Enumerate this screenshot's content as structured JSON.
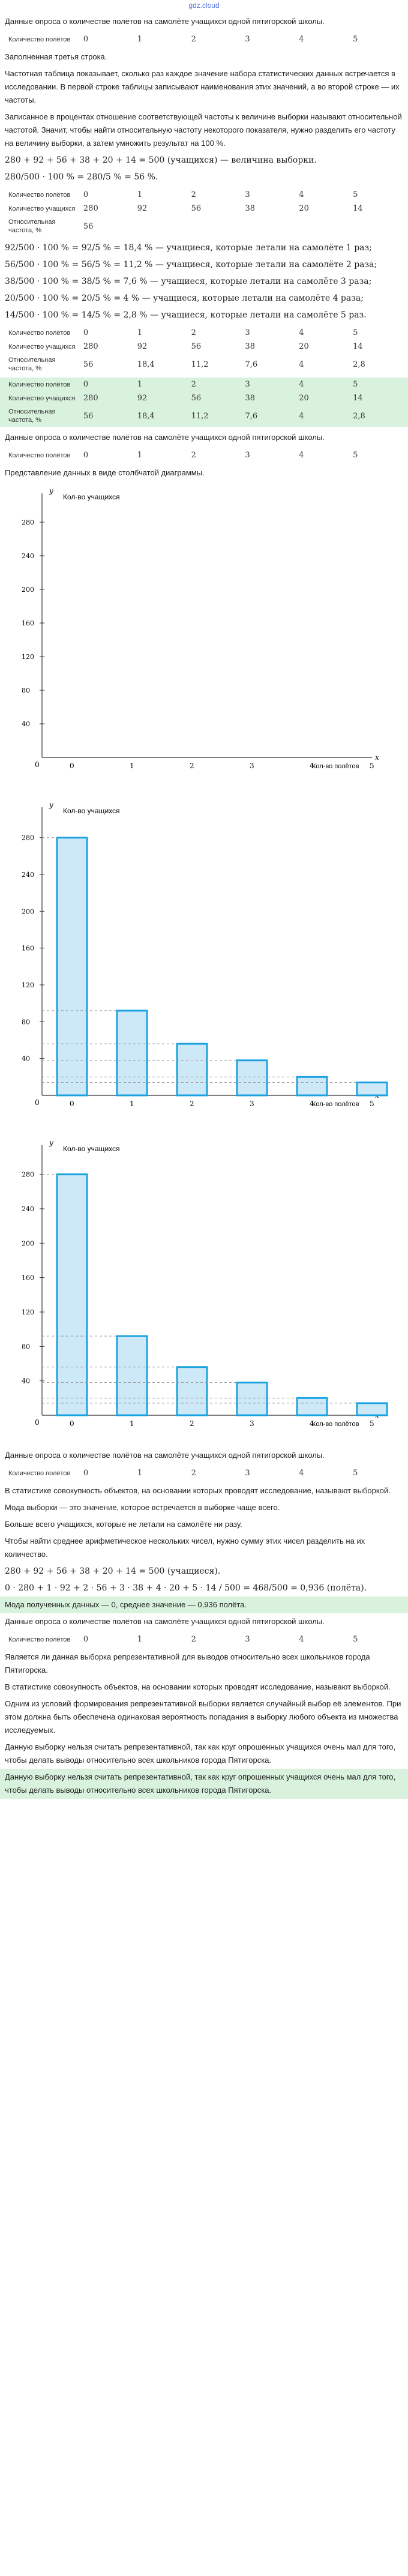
{
  "site": "gdz.cloud",
  "wm": "gdz.cloud",
  "s1": {
    "intro": "Данные опроса о количестве полётов на самолёте учащихся одной пятигорской школы.",
    "row_labels": [
      "Количество полётов"
    ],
    "cols": [
      "0",
      "1",
      "2",
      "3",
      "4",
      "5"
    ]
  },
  "p": [
    "Заполненная третья строка.",
    "Частотная таблица показывает, сколько раз каждое значение набора статистических данных встречается в исследовании. В первой строке таблицы записывают наименования этих значений, а во второй строке — их частоты.",
    "Записанное в процентах отношение соответствующей частоты к величине выборки называют относительной частотой. Значит, чтобы найти относительную частоту некоторого показателя, нужно разделить его частоту на величину выборки, а затем умножить результат на 100 %."
  ],
  "f1": "280 + 92 + 56 + 38 + 20 + 14 = 500 (учащихся) — величина выборки.",
  "f2": "280/500 · 100 % = 280/5 % = 56 %.",
  "t2": {
    "labels": [
      "Количество полётов",
      "Количество учащихся",
      "Относительная частота, %"
    ],
    "r1": [
      "0",
      "1",
      "2",
      "3",
      "4",
      "5"
    ],
    "r2": [
      "280",
      "92",
      "56",
      "38",
      "20",
      "14"
    ],
    "r3": [
      "56",
      "",
      "",
      "",
      "",
      ""
    ]
  },
  "calc": [
    "92/500 · 100 % = 92/5 % = 18,4 % — учащиеся, которые летали на самолёте 1 раз;",
    "56/500 · 100 % = 56/5 % = 11,2 % — учащиеся, которые летали на самолёте 2 раза;",
    "38/500 · 100 % = 38/5 % = 7,6 % — учащиеся, которые летали на самолёте 3 раза;",
    "20/500 · 100 % = 20/5 % = 4 % — учащиеся, которые летали на самолёте 4 раза;",
    "14/500 · 100 % = 14/5 % = 2,8 % — учащиеся, которые летали на самолёте 5 раз."
  ],
  "t3": {
    "labels": [
      "Количество полётов",
      "Количество учащихся",
      "Относительная частота, %"
    ],
    "r1": [
      "0",
      "1",
      "2",
      "3",
      "4",
      "5"
    ],
    "r2": [
      "280",
      "92",
      "56",
      "38",
      "20",
      "14"
    ],
    "r3": [
      "56",
      "18,4",
      "11,2",
      "7,6",
      "4",
      "2,8"
    ]
  },
  "s2intro": "Данные опроса о количестве полётов на самолёте учащихся одной пятигорской школы.",
  "s2cols": [
    "0",
    "1",
    "2",
    "3",
    "4",
    "5"
  ],
  "diag_text": "Представление данных в виде столбчатой диаграммы.",
  "chart_data": {
    "type": "bar",
    "categories": [
      "0",
      "1",
      "2",
      "3",
      "4",
      "5"
    ],
    "values": [
      280,
      92,
      56,
      38,
      20,
      14
    ],
    "ylabel": "Кол-во учащихся",
    "xlabel": "Кол-во полётов",
    "yticks": [
      "40",
      "80",
      "120",
      "160",
      "200",
      "240",
      "280"
    ],
    "xaxis": "x",
    "yaxis": "y",
    "origin": "0"
  },
  "s3intro": "Данные опроса о количестве полётов на самолёте учащихся одной пятигорской школы.",
  "s3cols": [
    "0",
    "1",
    "2",
    "3",
    "4",
    "5"
  ],
  "p2": [
    "В статистике совокупность объектов, на основании которых проводят исследование, называют выборкой.",
    "Мода выборки — это значение, которое встречается в выборке чаще всего.",
    "Больше всего учащихся, которые не летали на самолёте ни разу.",
    "Чтобы найти среднее арифметическое нескольких чисел, нужно сумму этих чисел разделить на их количество."
  ],
  "f3": "280 + 92 + 56 + 38 + 20 + 14 = 500 (учащиеся).",
  "f4": "0 · 280 + 1 · 92 + 2 · 56 + 3 · 38 + 4 · 20 + 5 · 14 / 500 = 468/500 = 0,936 (полёта).",
  "ans1": "Мода полученных данных — 0, среднее значение — 0,936 полёта.",
  "s4intro": "Данные опроса о количестве полётов на самолёте учащихся одной пятигорской школы.",
  "s4cols": [
    "0",
    "1",
    "2",
    "3",
    "4",
    "5"
  ],
  "p3": [
    "Является ли данная выборка репрезентативной для выводов относительно всех школьников города Пятигорска.",
    "В статистике совокупность объектов, на основании которых проводят исследование, называют выборкой.",
    "Одним из условий формирования репрезентативной выборки является случайный выбор её элементов. При этом должна быть обеспечена одинаковая вероятность попадания в выборку любого объекта из множества исследуемых.",
    "Данную выборку нельзя считать репрезентативной, так как круг опрошенных учащихся очень мал для того, чтобы делать выводы относительно всех школьников города Пятигорска."
  ],
  "ans2": "Данную выборку нельзя считать репрезентативной, так как круг опрошенных учащихся очень мал для того, чтобы делать выводы относительно всех школьников города Пятигорска."
}
